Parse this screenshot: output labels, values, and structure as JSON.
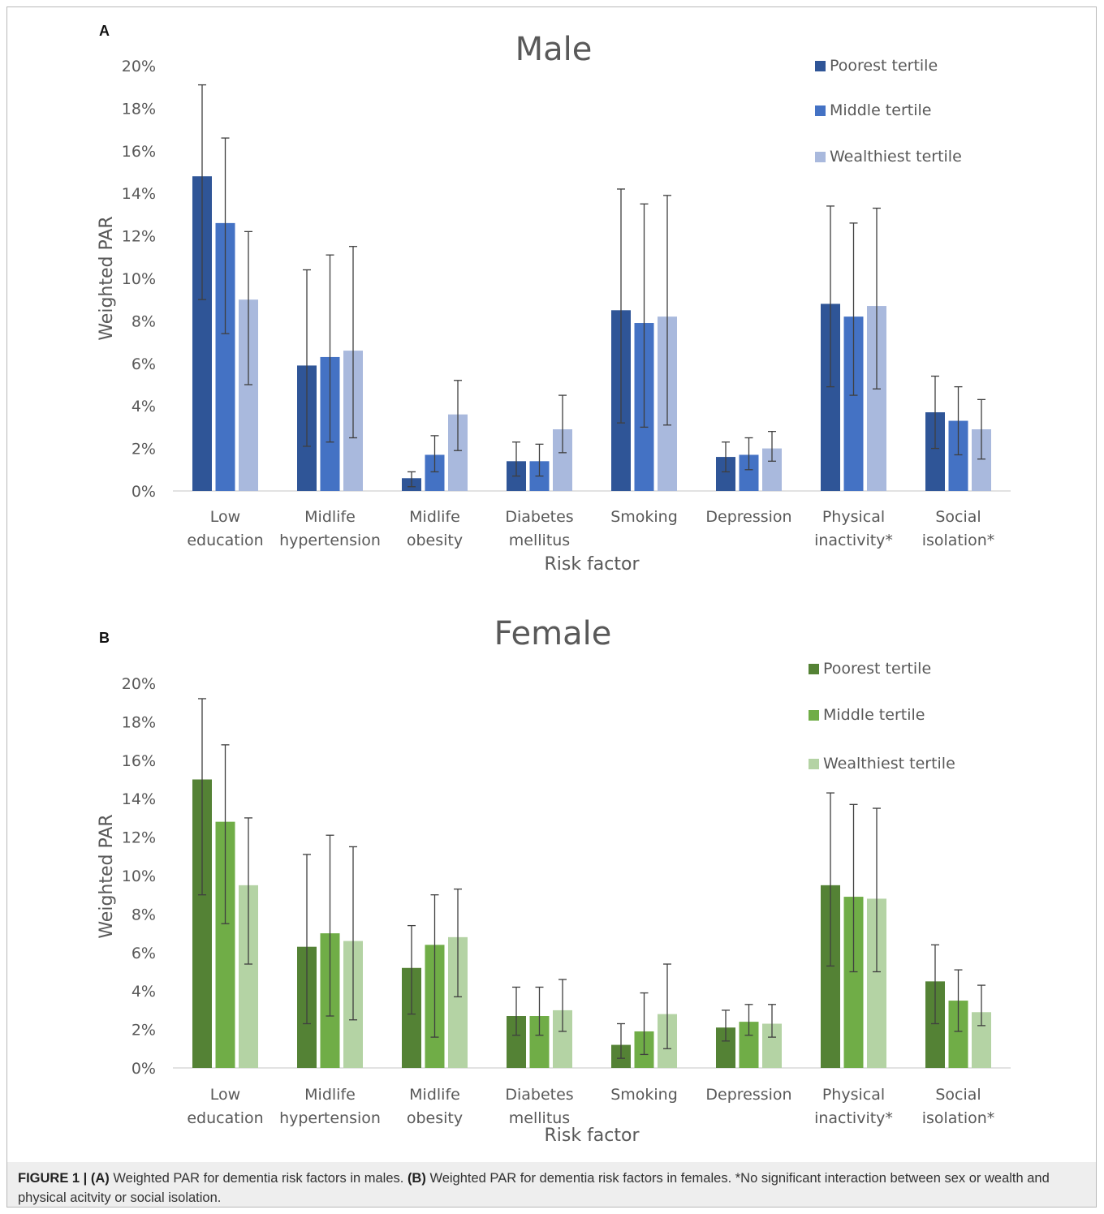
{
  "chart_data": [
    {
      "type": "bar",
      "panel_label": "A",
      "title": "Male",
      "xlabel": "Risk factor",
      "ylabel": "Weighted PAR",
      "ylim": [
        0,
        20
      ],
      "ytick_labels": [
        "0%",
        "2%",
        "4%",
        "6%",
        "8%",
        "10%",
        "12%",
        "14%",
        "16%",
        "18%",
        "20%"
      ],
      "categories": [
        [
          "Low",
          "education"
        ],
        [
          "Midlife",
          "hypertension"
        ],
        [
          "Midlife",
          "obesity"
        ],
        [
          "Diabetes",
          "mellitus"
        ],
        [
          "Smoking"
        ],
        [
          "Depression"
        ],
        [
          "Physical",
          "inactivity*"
        ],
        [
          "Social",
          "isolation*"
        ]
      ],
      "series": [
        {
          "name": "Poorest tertile",
          "color": "#2f5597",
          "values": [
            14.8,
            5.9,
            0.6,
            1.4,
            8.5,
            1.6,
            8.8,
            3.7
          ],
          "err_low": [
            9.0,
            2.1,
            0.2,
            0.7,
            3.2,
            0.9,
            4.9,
            2.0
          ],
          "err_high": [
            19.1,
            10.4,
            0.9,
            2.3,
            14.2,
            2.3,
            13.4,
            5.4
          ]
        },
        {
          "name": "Middle tertile",
          "color": "#4472c4",
          "values": [
            12.6,
            6.3,
            1.7,
            1.4,
            7.9,
            1.7,
            8.2,
            3.3
          ],
          "err_low": [
            7.4,
            2.3,
            0.9,
            0.7,
            3.0,
            1.0,
            4.5,
            1.7
          ],
          "err_high": [
            16.6,
            11.1,
            2.6,
            2.2,
            13.5,
            2.5,
            12.6,
            4.9
          ]
        },
        {
          "name": "Wealthiest tertile",
          "color": "#a9b9dd",
          "values": [
            9.0,
            6.6,
            3.6,
            2.9,
            8.2,
            2.0,
            8.7,
            2.9
          ],
          "err_low": [
            5.0,
            2.5,
            1.9,
            1.8,
            3.1,
            1.4,
            4.8,
            1.5
          ],
          "err_high": [
            12.2,
            11.5,
            5.2,
            4.5,
            13.9,
            2.8,
            13.3,
            4.3
          ]
        }
      ]
    },
    {
      "type": "bar",
      "panel_label": "B",
      "title": "Female",
      "xlabel": "Risk factor",
      "ylabel": "Weighted PAR",
      "ylim": [
        0,
        20
      ],
      "ytick_labels": [
        "0%",
        "2%",
        "4%",
        "6%",
        "8%",
        "10%",
        "12%",
        "14%",
        "16%",
        "18%",
        "20%"
      ],
      "categories": [
        [
          "Low",
          "education"
        ],
        [
          "Midlife",
          "hypertension"
        ],
        [
          "Midlife",
          "obesity"
        ],
        [
          "Diabetes",
          "mellitus"
        ],
        [
          "Smoking"
        ],
        [
          "Depression"
        ],
        [
          "Physical",
          "inactivity*"
        ],
        [
          "Social",
          "isolation*"
        ]
      ],
      "series": [
        {
          "name": "Poorest tertile",
          "color": "#548235",
          "values": [
            15.0,
            6.3,
            5.2,
            2.7,
            1.2,
            2.1,
            9.5,
            4.5
          ],
          "err_low": [
            9.0,
            2.3,
            2.8,
            1.7,
            0.5,
            1.4,
            5.3,
            2.3
          ],
          "err_high": [
            19.2,
            11.1,
            7.4,
            4.2,
            2.3,
            3.0,
            14.3,
            6.4
          ]
        },
        {
          "name": "Middle tertile",
          "color": "#70ad47",
          "values": [
            12.8,
            7.0,
            6.4,
            2.7,
            1.9,
            2.4,
            8.9,
            3.5
          ],
          "err_low": [
            7.5,
            2.7,
            1.6,
            1.7,
            0.7,
            1.7,
            5.0,
            1.9
          ],
          "err_high": [
            16.8,
            12.1,
            9.0,
            4.2,
            3.9,
            3.3,
            13.7,
            5.1
          ]
        },
        {
          "name": "Wealthiest tertile",
          "color": "#b4d3a4",
          "values": [
            9.5,
            6.6,
            6.8,
            3.0,
            2.8,
            2.3,
            8.8,
            2.9
          ],
          "err_low": [
            5.4,
            2.5,
            3.7,
            1.9,
            1.0,
            1.6,
            5.0,
            2.2
          ],
          "err_high": [
            13.0,
            11.5,
            9.3,
            4.6,
            5.4,
            3.3,
            13.5,
            4.3
          ]
        }
      ]
    }
  ],
  "caption": {
    "figure_label": "FIGURE 1 |",
    "a_label": "(A)",
    "a_text": "Weighted PAR for dementia risk factors in males.",
    "b_label": "(B)",
    "b_text": "Weighted PAR for dementia risk factors in females. *No significant interaction between sex or wealth and physical acitvity or social isolation."
  }
}
